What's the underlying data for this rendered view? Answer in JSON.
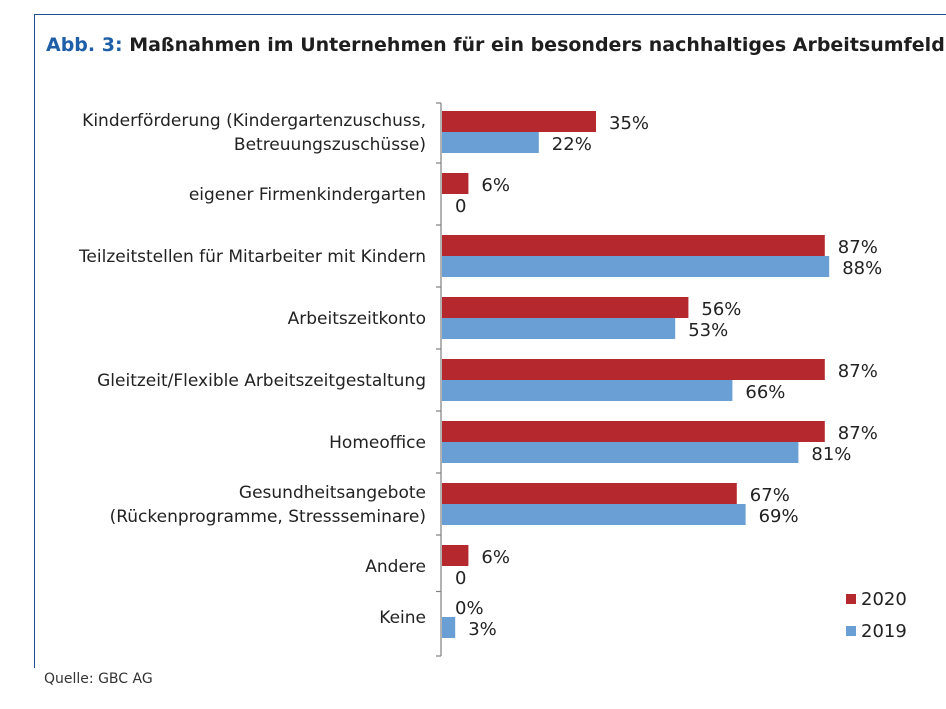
{
  "header": {
    "figure_label": "Abb. 3:",
    "title": "Maßnahmen im Unternehmen für ein besonders nachhaltiges Arbeitsumfeld"
  },
  "footer": {
    "source": "Quelle: GBC AG"
  },
  "colors": {
    "series_2020": "#b5282e",
    "series_2019": "#6a9fd6",
    "frame": "#1f4e8c",
    "title_accent": "#1f5fa8"
  },
  "chart_data": {
    "type": "bar",
    "orientation": "horizontal",
    "categories": [
      [
        "Kinderförderung (Kindergartenzuschuss,",
        "Betreuungszuschüsse)"
      ],
      [
        "eigener Firmenkindergarten"
      ],
      [
        "Teilzeitstellen für Mitarbeiter mit Kindern"
      ],
      [
        "Arbeitszeitkonto"
      ],
      [
        "Gleitzeit/Flexible Arbeitszeitgestaltung"
      ],
      [
        "Homeoffice"
      ],
      [
        "Gesundheitsangebote",
        "(Rückenprogramme, Stressseminare)"
      ],
      [
        "Andere"
      ],
      [
        "Keine"
      ]
    ],
    "series": [
      {
        "name": "2020",
        "values": [
          35,
          6,
          87,
          56,
          87,
          87,
          67,
          6,
          0
        ],
        "labels": [
          "35%",
          "6%",
          "87%",
          "56%",
          "87%",
          "87%",
          "67%",
          "6%",
          "0%"
        ]
      },
      {
        "name": "2019",
        "values": [
          22,
          0,
          88,
          53,
          66,
          81,
          69,
          0,
          3
        ],
        "labels": [
          "22%",
          "0",
          "88%",
          "53%",
          "66%",
          "81%",
          "69%",
          "0",
          "3%"
        ]
      }
    ],
    "xlim": [
      0,
      100
    ],
    "unit": "%",
    "legend": "bottom-right",
    "grid": false
  }
}
